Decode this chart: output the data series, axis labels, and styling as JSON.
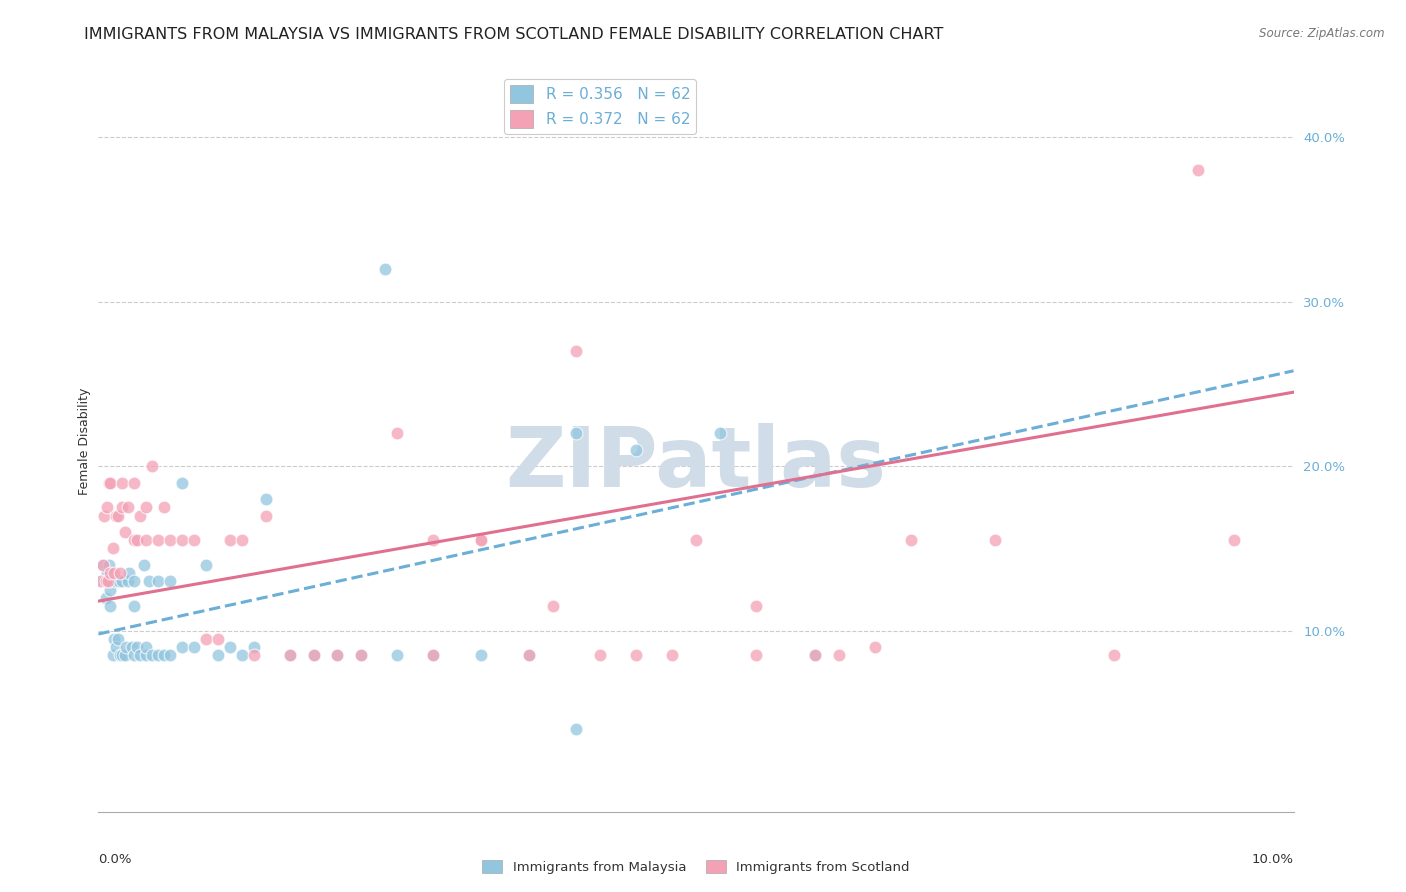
{
  "title": "IMMIGRANTS FROM MALAYSIA VS IMMIGRANTS FROM SCOTLAND FEMALE DISABILITY CORRELATION CHART",
  "source": "Source: ZipAtlas.com",
  "ylabel": "Female Disability",
  "ytick_values": [
    0.1,
    0.2,
    0.3,
    0.4
  ],
  "xmin": 0.0,
  "xmax": 0.1,
  "ymin": -0.01,
  "ymax": 0.44,
  "legend_r_malaysia": "R = 0.356",
  "legend_n_malaysia": "N = 62",
  "legend_r_scotland": "R = 0.372",
  "legend_n_scotland": "N = 62",
  "color_malaysia": "#92c5de",
  "color_scotland": "#f4a0b5",
  "color_trendline_malaysia": "#6baed6",
  "color_trendline_scotland": "#e07090",
  "malaysia_x": [
    0.0002,
    0.0004,
    0.0005,
    0.0006,
    0.0007,
    0.0008,
    0.0009,
    0.001,
    0.001,
    0.001,
    0.0012,
    0.0013,
    0.0014,
    0.0015,
    0.0016,
    0.0017,
    0.0018,
    0.002,
    0.002,
    0.0022,
    0.0023,
    0.0025,
    0.0026,
    0.0028,
    0.003,
    0.003,
    0.003,
    0.0032,
    0.0035,
    0.0038,
    0.004,
    0.004,
    0.0042,
    0.0045,
    0.005,
    0.005,
    0.0055,
    0.006,
    0.006,
    0.007,
    0.007,
    0.008,
    0.009,
    0.01,
    0.011,
    0.012,
    0.013,
    0.014,
    0.016,
    0.018,
    0.02,
    0.022,
    0.025,
    0.028,
    0.032,
    0.036,
    0.04,
    0.045,
    0.052,
    0.06,
    0.024,
    0.04
  ],
  "malaysia_y": [
    0.13,
    0.14,
    0.13,
    0.12,
    0.135,
    0.13,
    0.14,
    0.125,
    0.13,
    0.115,
    0.085,
    0.095,
    0.13,
    0.09,
    0.095,
    0.13,
    0.085,
    0.085,
    0.13,
    0.085,
    0.09,
    0.13,
    0.135,
    0.09,
    0.085,
    0.115,
    0.13,
    0.09,
    0.085,
    0.14,
    0.085,
    0.09,
    0.13,
    0.085,
    0.085,
    0.13,
    0.085,
    0.085,
    0.13,
    0.09,
    0.19,
    0.09,
    0.14,
    0.085,
    0.09,
    0.085,
    0.09,
    0.18,
    0.085,
    0.085,
    0.085,
    0.085,
    0.085,
    0.085,
    0.085,
    0.085,
    0.22,
    0.21,
    0.22,
    0.085,
    0.32,
    0.04
  ],
  "scotland_x": [
    0.0002,
    0.0004,
    0.0005,
    0.0006,
    0.0007,
    0.0008,
    0.0009,
    0.001,
    0.001,
    0.0012,
    0.0013,
    0.0015,
    0.0016,
    0.0018,
    0.002,
    0.002,
    0.0022,
    0.0025,
    0.003,
    0.003,
    0.0032,
    0.0035,
    0.004,
    0.004,
    0.0045,
    0.005,
    0.0055,
    0.006,
    0.007,
    0.008,
    0.009,
    0.01,
    0.011,
    0.012,
    0.013,
    0.014,
    0.016,
    0.018,
    0.02,
    0.022,
    0.025,
    0.028,
    0.032,
    0.036,
    0.04,
    0.045,
    0.05,
    0.055,
    0.06,
    0.065,
    0.028,
    0.032,
    0.038,
    0.042,
    0.048,
    0.055,
    0.062,
    0.068,
    0.075,
    0.085,
    0.092,
    0.095
  ],
  "scotland_y": [
    0.13,
    0.14,
    0.17,
    0.13,
    0.175,
    0.13,
    0.19,
    0.135,
    0.19,
    0.15,
    0.135,
    0.17,
    0.17,
    0.135,
    0.175,
    0.19,
    0.16,
    0.175,
    0.155,
    0.19,
    0.155,
    0.17,
    0.155,
    0.175,
    0.2,
    0.155,
    0.175,
    0.155,
    0.155,
    0.155,
    0.095,
    0.095,
    0.155,
    0.155,
    0.085,
    0.17,
    0.085,
    0.085,
    0.085,
    0.085,
    0.22,
    0.085,
    0.155,
    0.085,
    0.27,
    0.085,
    0.155,
    0.085,
    0.085,
    0.09,
    0.155,
    0.155,
    0.115,
    0.085,
    0.085,
    0.115,
    0.085,
    0.155,
    0.155,
    0.085,
    0.38,
    0.155
  ],
  "background_color": "#ffffff",
  "grid_color": "#cccccc",
  "watermark_text": "ZIPatlas",
  "watermark_color": "#d0dde8",
  "watermark_fontsize": 60,
  "title_fontsize": 11.5,
  "axis_label_fontsize": 9,
  "tick_fontsize": 9.5,
  "legend_fontsize": 11,
  "trendline_malaysia_x0": 0.0,
  "trendline_malaysia_y0": 0.098,
  "trendline_malaysia_x1": 0.1,
  "trendline_malaysia_y1": 0.258,
  "trendline_scotland_x0": 0.0,
  "trendline_scotland_y0": 0.118,
  "trendline_scotland_x1": 0.1,
  "trendline_scotland_y1": 0.245
}
